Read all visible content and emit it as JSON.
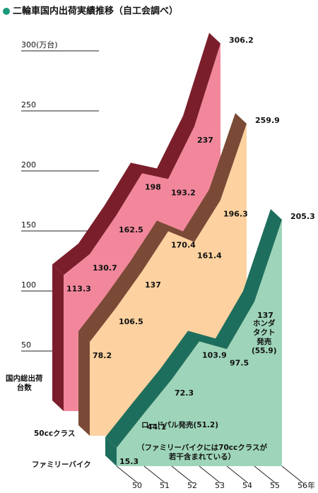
{
  "chart_data": {
    "type": "ribbon3d",
    "title": "二輪車国内出荷実績推移（自工会調べ）",
    "categories": [
      "50",
      "51",
      "52",
      "53",
      "54",
      "55",
      "56年"
    ],
    "ylim": [
      0,
      310
    ],
    "yticks": [
      50,
      100,
      150,
      200,
      250,
      {
        "value": 300,
        "label": "300(万台)"
      }
    ],
    "series": [
      {
        "name": "国内総出荷\n台数",
        "color": "#f2879c",
        "edge_color": "#7b1e2b",
        "values": [
          113.3,
          130.7,
          162.5,
          198.0,
          193.2,
          237.0,
          306.2
        ]
      },
      {
        "name": "50ccクラス",
        "color": "#fdd2a0",
        "edge_color": "#7a4a36",
        "values": [
          78.2,
          106.5,
          137.0,
          170.4,
          161.4,
          196.3,
          259.9
        ]
      },
      {
        "name": "ファミリーバイク",
        "color": "#9ed5ba",
        "edge_color": "#1e6e5d",
        "values": [
          15.3,
          44.1,
          72.3,
          103.9,
          97.5,
          137.0,
          205.3
        ]
      }
    ],
    "annotations": [
      "ロードパル発売(51.2)",
      "ホンダ\nタクト\n発売\n(55.9)",
      "（ファミリーバイクには70ccクラスが\n若干含まれている）"
    ],
    "title_marker_color": "#1a9a7a"
  }
}
